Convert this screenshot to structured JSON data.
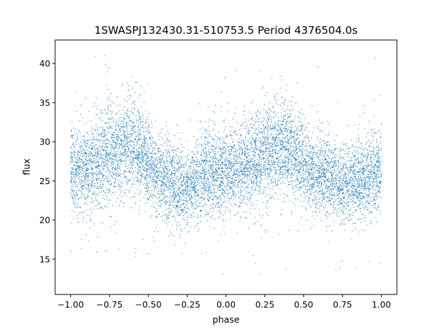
{
  "chart_data": {
    "type": "scatter",
    "title": "1SWASPJ132430.31-510753.5 Period 4376504.0s",
    "xlabel": "phase",
    "ylabel": "flux",
    "xlim": [
      -1.1,
      1.1
    ],
    "ylim": [
      10.5,
      43.0
    ],
    "xticks": [
      -1.0,
      -0.75,
      -0.5,
      -0.25,
      0.0,
      0.25,
      0.5,
      0.75,
      1.0
    ],
    "xtick_labels": [
      "−1.00",
      "−0.75",
      "−0.50",
      "−0.25",
      "0.00",
      "0.25",
      "0.50",
      "0.75",
      "1.00"
    ],
    "yticks": [
      15,
      20,
      25,
      30,
      35,
      40
    ],
    "ytick_labels": [
      "15",
      "20",
      "25",
      "30",
      "35",
      "40"
    ],
    "grid": false,
    "series": [
      {
        "color": "#1f77b4",
        "marker_size": 0.8,
        "phase_range": [
          -1.0,
          1.0
        ],
        "profile": {
          "x": [
            -1.0,
            -0.9,
            -0.75,
            -0.62,
            -0.55,
            -0.45,
            -0.35,
            -0.25,
            -0.15,
            -0.05,
            0.0,
            0.1,
            0.25,
            0.38,
            0.45,
            0.55,
            0.65,
            0.75,
            0.85,
            0.95,
            1.0
          ],
          "y": [
            26.5,
            26.5,
            28.5,
            29.5,
            28.5,
            26.0,
            25.0,
            24.0,
            25.5,
            26.5,
            26.5,
            26.5,
            28.5,
            29.5,
            28.5,
            26.0,
            25.5,
            24.5,
            25.0,
            26.0,
            26.5
          ],
          "spread": [
            2.5,
            2.8,
            3.0,
            3.0,
            2.8,
            2.5,
            2.5,
            2.3,
            2.5,
            2.7,
            2.7,
            2.8,
            3.0,
            3.0,
            2.8,
            2.5,
            2.5,
            2.3,
            2.5,
            2.6,
            2.5
          ]
        },
        "value_range": [
          12.0,
          42.0
        ]
      }
    ]
  }
}
